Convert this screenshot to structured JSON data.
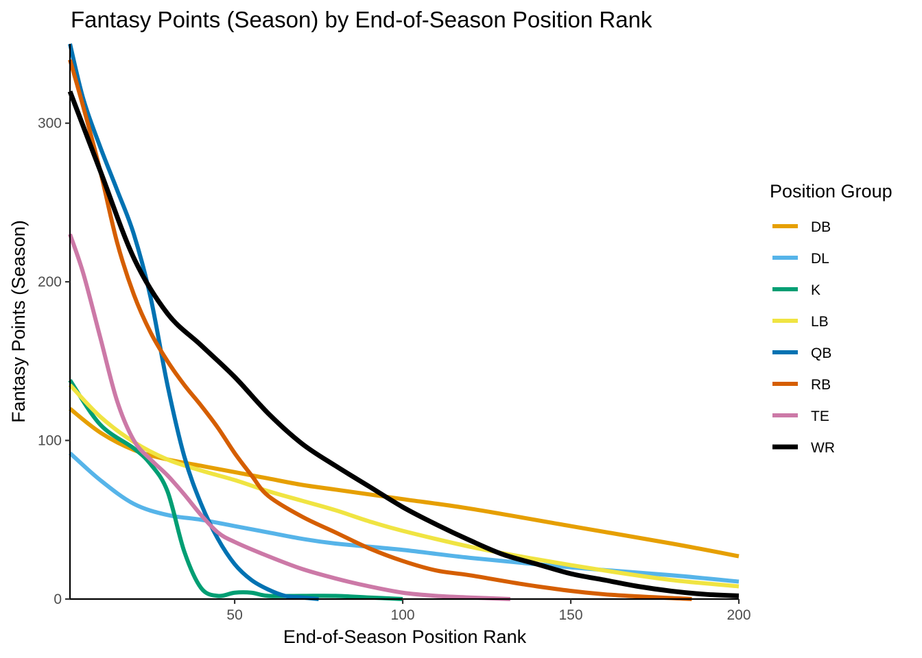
{
  "chart_data": {
    "type": "line",
    "title": "Fantasy Points (Season) by End-of-Season Position Rank",
    "xlabel": "End-of-Season Position Rank",
    "ylabel": "Fantasy Points (Season)",
    "xlim": [
      1,
      200
    ],
    "ylim": [
      0,
      350
    ],
    "xticks": [
      50,
      100,
      150,
      200
    ],
    "yticks": [
      0,
      100,
      200,
      300
    ],
    "grid": false,
    "legend": {
      "title": "Position Group",
      "position": "right"
    },
    "series": [
      {
        "name": "DB",
        "color": "#E69F00",
        "x": [
          1,
          10,
          20,
          30,
          40,
          50,
          60,
          70,
          80,
          100,
          120,
          150,
          180,
          200
        ],
        "y": [
          120,
          105,
          94,
          88,
          84,
          80,
          76,
          72,
          69,
          63,
          57,
          46,
          35,
          27
        ]
      },
      {
        "name": "DL",
        "color": "#56B4E9",
        "x": [
          1,
          10,
          20,
          30,
          40,
          50,
          60,
          70,
          80,
          100,
          120,
          150,
          180,
          200
        ],
        "y": [
          92,
          75,
          60,
          53,
          50,
          46,
          42,
          38,
          35,
          31,
          26,
          20,
          15,
          11
        ]
      },
      {
        "name": "K",
        "color": "#009E73",
        "x": [
          1,
          10,
          20,
          25,
          30,
          35,
          40,
          45,
          50,
          55,
          60,
          70,
          80,
          90,
          100
        ],
        "y": [
          138,
          110,
          95,
          85,
          68,
          30,
          7,
          2,
          4,
          4,
          2,
          2,
          2,
          1,
          0
        ]
      },
      {
        "name": "LB",
        "color": "#F0E442",
        "x": [
          1,
          10,
          20,
          30,
          40,
          50,
          60,
          70,
          80,
          90,
          100,
          120,
          140,
          160,
          180,
          200
        ],
        "y": [
          135,
          115,
          99,
          88,
          81,
          75,
          68,
          62,
          56,
          49,
          43,
          33,
          25,
          18,
          12,
          8
        ]
      },
      {
        "name": "QB",
        "color": "#0072B2",
        "x": [
          1,
          5,
          10,
          15,
          20,
          25,
          30,
          35,
          40,
          45,
          50,
          55,
          60,
          65,
          70,
          75
        ],
        "y": [
          350,
          315,
          285,
          258,
          230,
          190,
          135,
          90,
          60,
          38,
          22,
          12,
          6,
          2,
          1,
          0
        ]
      },
      {
        "name": "RB",
        "color": "#D55E00",
        "x": [
          1,
          5,
          10,
          15,
          20,
          25,
          30,
          35,
          40,
          45,
          50,
          55,
          60,
          70,
          80,
          90,
          100,
          110,
          120,
          140,
          160,
          186
        ],
        "y": [
          340,
          310,
          270,
          225,
          192,
          168,
          150,
          135,
          122,
          108,
          92,
          78,
          65,
          52,
          42,
          32,
          24,
          18,
          15,
          8,
          3,
          0
        ]
      },
      {
        "name": "TE",
        "color": "#CC79A7",
        "x": [
          1,
          5,
          10,
          15,
          20,
          25,
          30,
          35,
          40,
          45,
          50,
          60,
          70,
          80,
          90,
          100,
          110,
          120,
          132
        ],
        "y": [
          230,
          205,
          165,
          125,
          100,
          88,
          78,
          66,
          53,
          42,
          36,
          27,
          19,
          13,
          8,
          4,
          2,
          1,
          0
        ]
      },
      {
        "name": "WR",
        "color": "#000000",
        "x": [
          1,
          10,
          20,
          30,
          40,
          50,
          60,
          70,
          80,
          90,
          100,
          110,
          120,
          130,
          140,
          150,
          160,
          170,
          180,
          190,
          200
        ],
        "y": [
          320,
          270,
          215,
          180,
          160,
          140,
          117,
          98,
          84,
          71,
          58,
          47,
          37,
          28,
          22,
          16,
          12,
          8,
          5,
          3,
          2
        ]
      }
    ]
  }
}
